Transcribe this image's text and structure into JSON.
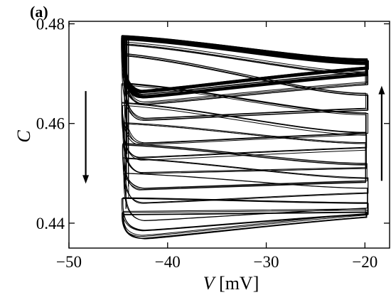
{
  "chart_data": {
    "type": "line",
    "panel_label": "(a)",
    "xlabel_var": "V",
    "xlabel_unit": " [mV]",
    "ylabel": "C",
    "xlim": [
      -50,
      -17.5
    ],
    "ylim": [
      0.435,
      0.4805
    ],
    "xticks": [
      -50,
      -40,
      -30,
      -20
    ],
    "xtick_labels": [
      "−50",
      "−40",
      "−30",
      "−20"
    ],
    "yticks": [
      0.44,
      0.46,
      0.48
    ],
    "ytick_labels": [
      "0.44",
      "0.46",
      "0.48"
    ],
    "grid": false,
    "loop_left_V": -44.5,
    "loop_right_V": -19.8,
    "loops": [
      {
        "c_left_top": 0.4775,
        "c_right_top": 0.4728,
        "c_dip": 0.4665,
        "c_right_bottom": 0.4712,
        "repeats": 10
      },
      {
        "c_left_top": 0.4772,
        "c_right_top": 0.4722,
        "c_dip": 0.4655,
        "c_right_bottom": 0.47,
        "repeats": 8
      },
      {
        "c_left_top": 0.476,
        "c_right_top": 0.47,
        "c_dip": 0.464,
        "c_right_bottom": 0.468,
        "repeats": 5
      },
      {
        "c_left_top": 0.474,
        "c_right_top": 0.466,
        "c_dip": 0.461,
        "c_right_bottom": 0.463,
        "repeats": 4
      },
      {
        "c_left_top": 0.468,
        "c_right_top": 0.462,
        "c_dip": 0.456,
        "c_right_bottom": 0.458,
        "repeats": 4
      },
      {
        "c_left_top": 0.464,
        "c_right_top": 0.458,
        "c_dip": 0.453,
        "c_right_bottom": 0.455,
        "repeats": 3
      },
      {
        "c_left_top": 0.46,
        "c_right_top": 0.456,
        "c_dip": 0.45,
        "c_right_bottom": 0.451,
        "repeats": 3
      },
      {
        "c_left_top": 0.456,
        "c_right_top": 0.452,
        "c_dip": 0.447,
        "c_right_bottom": 0.4485,
        "repeats": 4
      },
      {
        "c_left_top": 0.453,
        "c_right_top": 0.449,
        "c_dip": 0.444,
        "c_right_bottom": 0.446,
        "repeats": 2
      },
      {
        "c_left_top": 0.45,
        "c_right_top": 0.447,
        "c_dip": 0.4405,
        "c_right_bottom": 0.443,
        "repeats": 2
      },
      {
        "c_left_top": 0.445,
        "c_right_top": 0.444,
        "c_dip": 0.4385,
        "c_right_bottom": 0.4418,
        "repeats": 3
      },
      {
        "c_left_top": 0.442,
        "c_right_top": 0.4425,
        "c_dip": 0.4372,
        "c_right_bottom": 0.4415,
        "repeats": 5
      }
    ],
    "arrows": [
      {
        "direction": "down",
        "V": -48.3,
        "c_from": 0.4665,
        "c_to": 0.4485
      },
      {
        "direction": "up",
        "V": -18.3,
        "c_from": 0.4485,
        "c_to": 0.467
      }
    ]
  }
}
